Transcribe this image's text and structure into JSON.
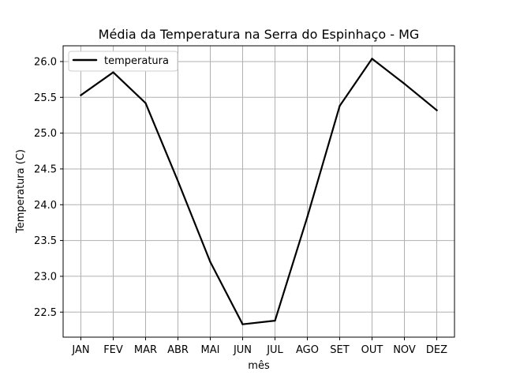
{
  "chart_data": {
    "type": "line",
    "title": "Média da Temperatura na Serra do Espinhaço - MG",
    "xlabel": "mês",
    "ylabel": "Temperatura (C)",
    "categories": [
      "JAN",
      "FEV",
      "MAR",
      "ABR",
      "MAI",
      "JUN",
      "JUL",
      "AGO",
      "SET",
      "OUT",
      "NOV",
      "DEZ"
    ],
    "series": [
      {
        "name": "temperatura",
        "color": "#000000",
        "values": [
          25.53,
          25.85,
          25.42,
          24.33,
          23.2,
          22.33,
          22.38,
          23.83,
          25.38,
          26.04,
          25.69,
          25.32
        ]
      }
    ],
    "ylim": [
      22.15,
      26.22
    ],
    "yticks": [
      "22.5",
      "23.0",
      "23.5",
      "24.0",
      "24.5",
      "25.0",
      "25.5",
      "26.0"
    ],
    "grid": true,
    "legend_position": "upper left"
  }
}
